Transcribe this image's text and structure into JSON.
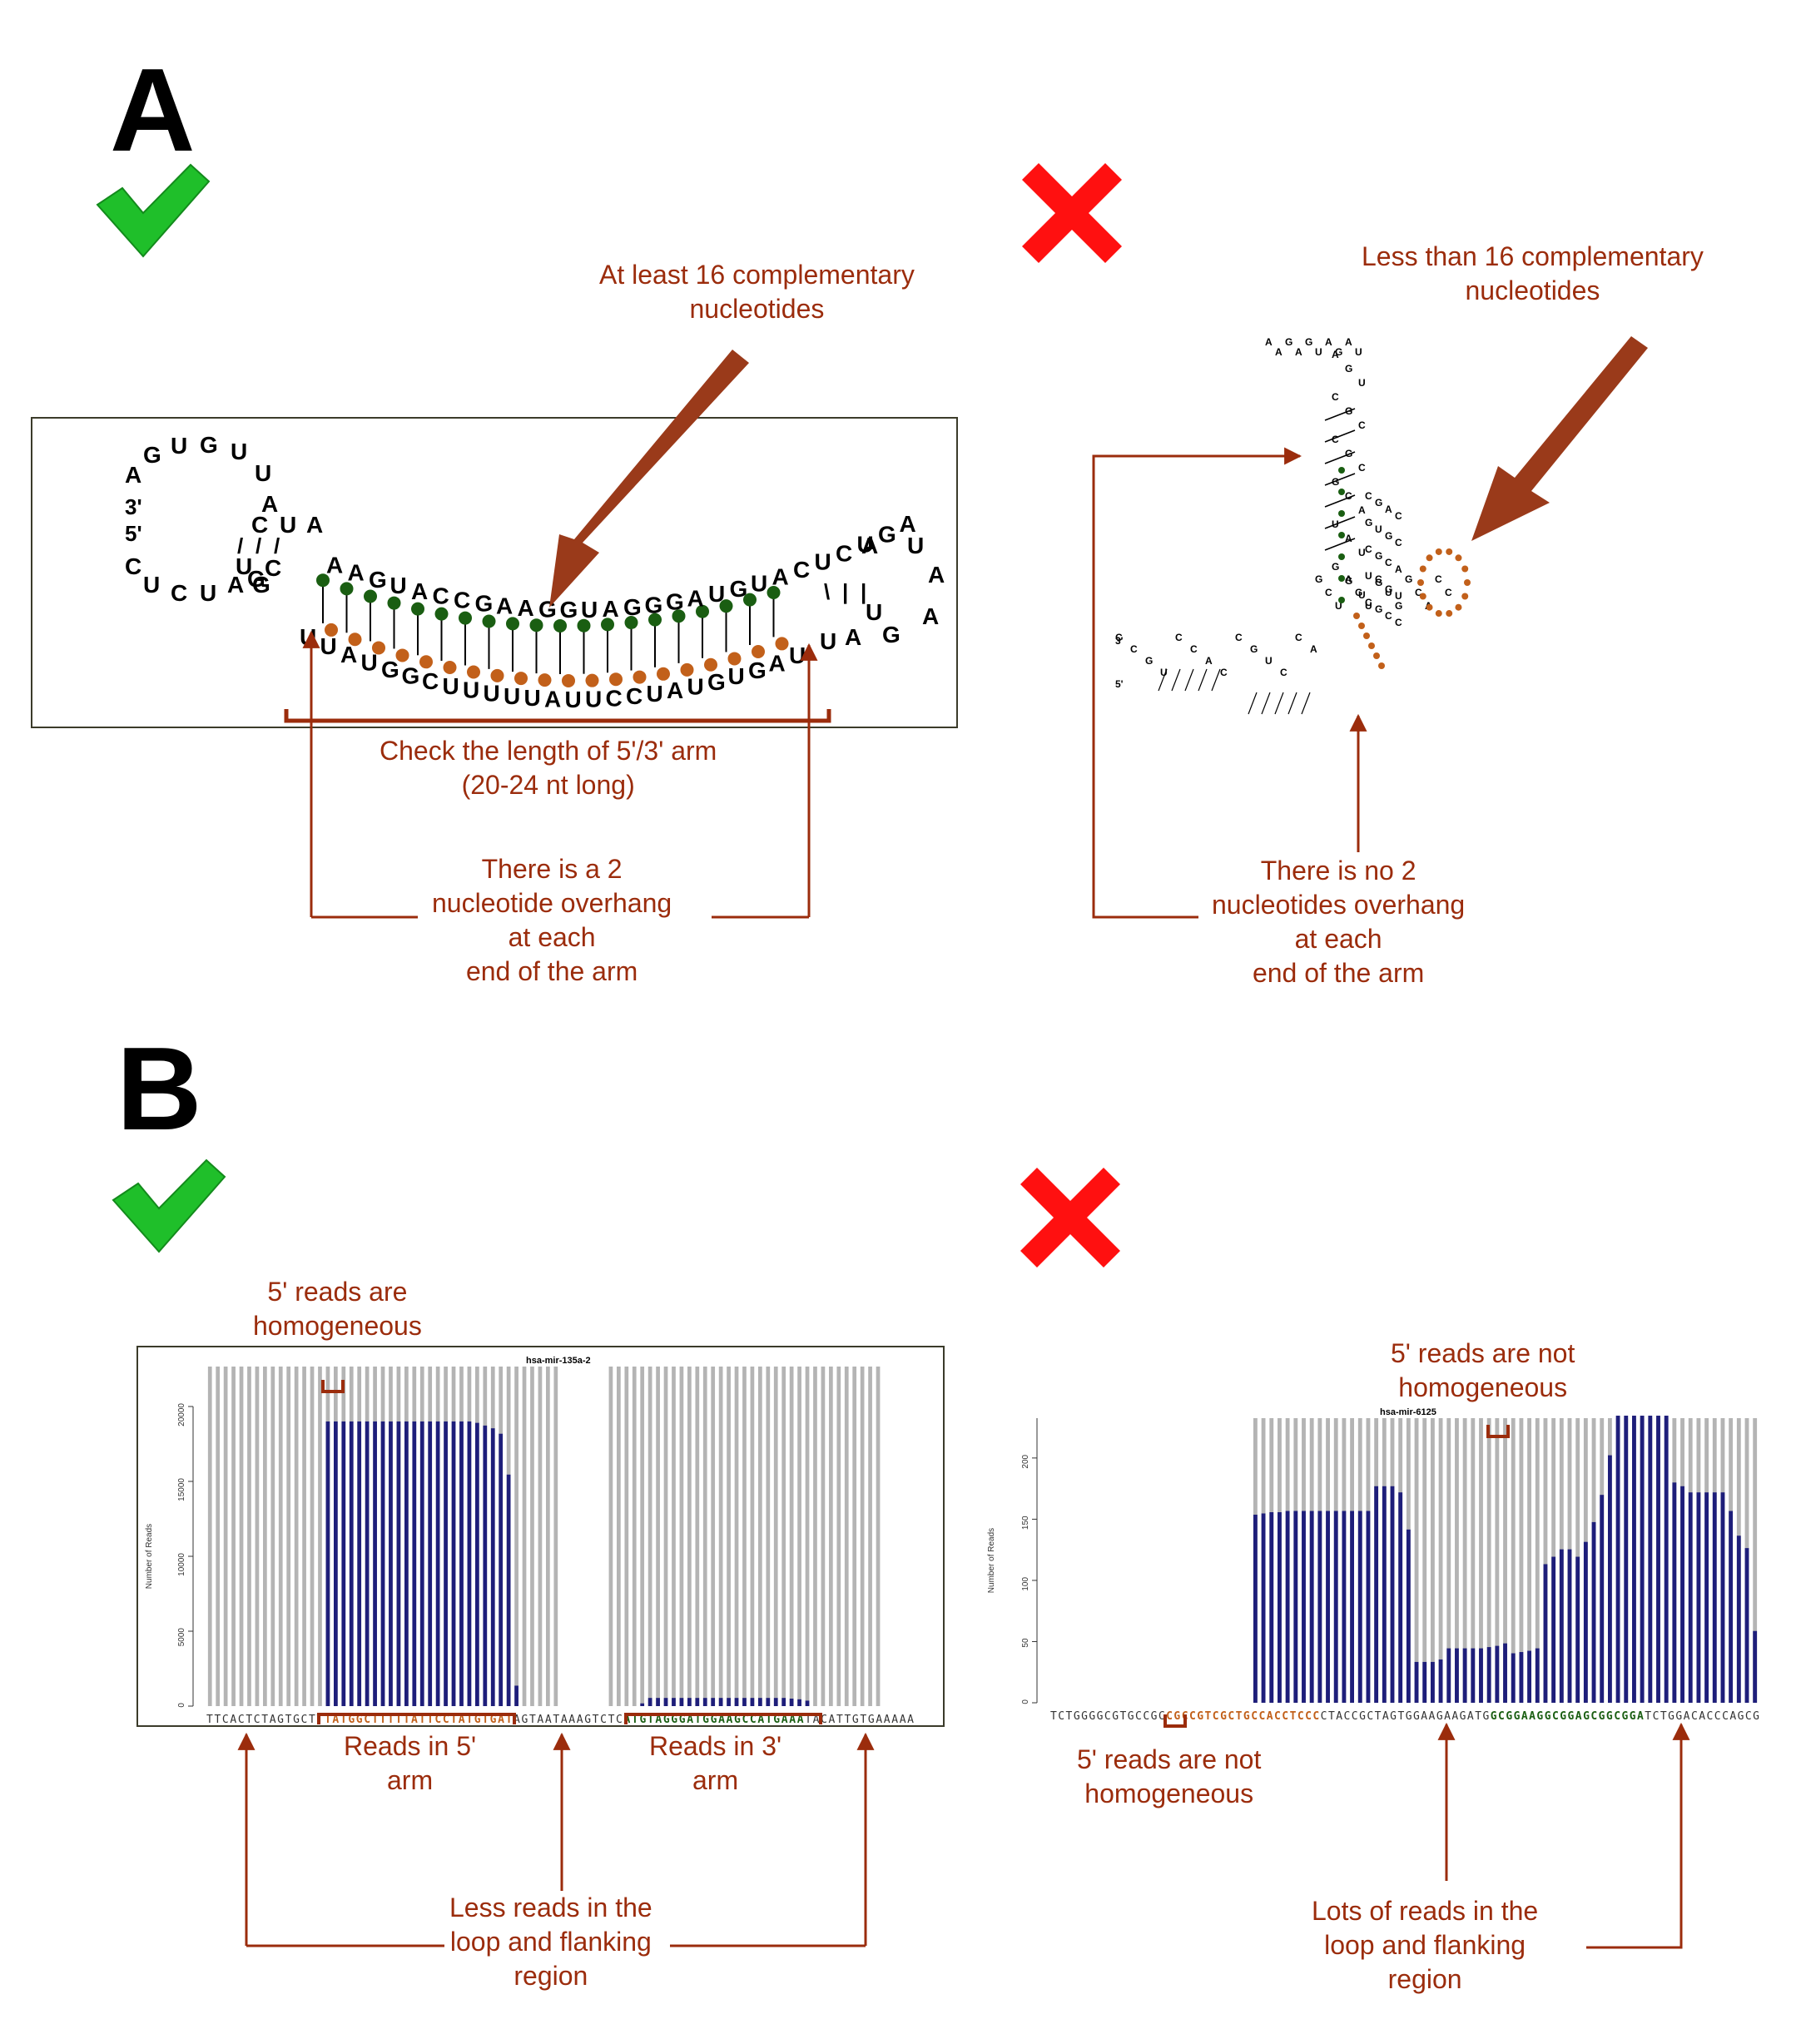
{
  "panels": {
    "a": "A",
    "b": "B"
  },
  "colors": {
    "annotation": "#9b2c0c",
    "pair_5p": "#1a5e12",
    "pair_3p": "#c2601a",
    "bars_reads": "#1e1e7a",
    "bars_bg": "#b4b4b4",
    "check": "#1fbf2a",
    "cross": "#ff1010"
  },
  "icons": [
    "check-mark-icon",
    "cross-mark-icon"
  ],
  "panel_a": {
    "good": {
      "label_comp": [
        "At least 16 complementary",
        "nucleotides"
      ],
      "label_length": [
        "Check the length of 5'/3' arm",
        "(20-24 nt long)"
      ],
      "label_overhang": [
        "There is a 2",
        "nucleotide overhang",
        "at each",
        "end of the arm"
      ],
      "loop_letters": [
        "A",
        "G",
        "U",
        "G",
        "U",
        "U",
        "A",
        "C",
        "U",
        "A"
      ],
      "end_labels": [
        "3'",
        "5'"
      ],
      "top_strand": "AAGUACCGAAGGUAGGGAUGUACUCUGA",
      "bottom_strand": "UUAUGGCUUUUUAUUCCUAUGUGAU",
      "left_tail": [
        "C",
        "U",
        "C",
        "U",
        "A",
        "U",
        "G",
        "C",
        "G"
      ],
      "right_tail": [
        "A",
        "U",
        "A",
        "A",
        "G",
        "U",
        "A",
        "U"
      ]
    },
    "bad": {
      "label_comp": [
        "Less than 16 complementary",
        "nucleotides"
      ],
      "label_overhang": [
        "There is no 2",
        "nucleotides overhang",
        "at each",
        "end of the arm"
      ],
      "letters": [
        "A",
        "A",
        "G",
        "A",
        "G",
        "U",
        "A",
        "G",
        "A",
        "U",
        "A",
        "G",
        "U",
        "C",
        "G",
        "C",
        "C",
        "G",
        "C",
        "G",
        "C",
        "A",
        "U",
        "A",
        "U",
        "G",
        "G",
        "U",
        "C",
        "C",
        "G",
        "U",
        "C",
        "C",
        "A",
        "C",
        "C",
        "G",
        "U",
        "C",
        "C",
        "A",
        "G",
        "C",
        "U",
        "A",
        "G",
        "U",
        "C",
        "U",
        "G",
        "G",
        "C",
        "A",
        "C",
        "C",
        "C",
        "G",
        "A",
        "C",
        "G",
        "U",
        "G",
        "C",
        "C",
        "G",
        "C",
        "A",
        "U",
        "G",
        "G",
        "U",
        "C",
        "G",
        "C",
        "C"
      ],
      "end_labels": [
        "3'",
        "5'"
      ]
    }
  },
  "panel_b": {
    "good": {
      "title": "hsa-mir-135a-2",
      "ylabel": "Number of Reads",
      "yticks": [
        "0",
        "5000",
        "10000",
        "15000",
        "20000"
      ],
      "label_homog": [
        "5' reads are",
        "homogeneous"
      ],
      "label_5arm": [
        "Reads in 5'",
        "arm"
      ],
      "label_3arm": [
        "Reads in 3'",
        "arm"
      ],
      "label_loop": [
        "Less reads in the",
        "loop and flanking",
        "region"
      ],
      "sequence": [
        {
          "t": "TTCACTCTAGTGCTT",
          "c": "#333333"
        },
        {
          "t": "TATGGCTTTTTATTCCTATGTGAT",
          "c": "#c2601a"
        },
        {
          "t": "AGTAATAAAGTCTC",
          "c": "#333333"
        },
        {
          "t": "ATGTAGGGATGGAAGCCATGAAA",
          "c": "#1a5e12"
        },
        {
          "t": "TACATTGTGAAAAA",
          "c": "#333333"
        }
      ]
    },
    "bad": {
      "title": "hsa-mir-6125",
      "ylabel": "Number of Reads",
      "yticks": [
        "0",
        "50",
        "100",
        "150",
        "200"
      ],
      "label_not_homog_top": [
        "5' reads are not",
        "homogeneous"
      ],
      "label_not_homog_bottom": [
        "5' reads are not",
        "homogeneous"
      ],
      "label_loop": [
        "Lots of reads in the",
        "loop and flanking",
        "region"
      ],
      "sequence": [
        {
          "t": "TCTGGGGCGTGCCGC",
          "c": "#333333"
        },
        {
          "t": "CGCCGTCGCTGCCACCTCCC",
          "c": "#c2601a"
        },
        {
          "t": "CTACCGCTAGTGGAAGAAGATG",
          "c": "#333333"
        },
        {
          "t": "GCGGAAGGCGGAGCGGCGGA",
          "c": "#1a5e12"
        },
        {
          "t": "TCTGGACACCCAGCG",
          "c": "#333333"
        }
      ]
    }
  },
  "chart_data": [
    {
      "type": "bar",
      "title": "hsa-mir-135a-2",
      "ylabel": "Number of Reads",
      "ylim": [
        0,
        22000
      ],
      "grid": false,
      "values": [
        0,
        0,
        0,
        0,
        0,
        0,
        0,
        0,
        0,
        0,
        0,
        0,
        0,
        0,
        0,
        20900,
        20900,
        20900,
        20900,
        20900,
        20900,
        20900,
        20900,
        20900,
        20900,
        20900,
        20900,
        20900,
        20900,
        20900,
        20900,
        20900,
        20900,
        20900,
        20800,
        20600,
        20400,
        20000,
        17000,
        1500,
        0,
        0,
        0,
        0,
        0,
        0,
        0,
        0,
        0,
        0,
        0,
        0,
        0,
        0,
        0,
        200,
        600,
        600,
        600,
        600,
        600,
        600,
        600,
        600,
        600,
        600,
        600,
        600,
        600,
        600,
        600,
        600,
        600,
        600,
        550,
        500,
        400,
        0,
        0,
        0,
        0,
        0,
        0,
        0,
        0,
        0,
        0,
        0,
        0,
        0
      ]
    },
    {
      "type": "bar",
      "title": "hsa-mir-6125",
      "ylabel": "Number of Reads",
      "ylim": [
        0,
        230
      ],
      "grid": false,
      "values": [
        0,
        0,
        0,
        0,
        0,
        0,
        0,
        0,
        0,
        0,
        0,
        0,
        0,
        0,
        0,
        0,
        0,
        0,
        0,
        0,
        0,
        0,
        0,
        0,
        0,
        152,
        153,
        154,
        154,
        155,
        155,
        155,
        155,
        155,
        155,
        155,
        155,
        155,
        155,
        155,
        175,
        175,
        175,
        170,
        140,
        33,
        33,
        33,
        35,
        44,
        44,
        44,
        44,
        44,
        45,
        46,
        48,
        40,
        41,
        42,
        44,
        112,
        118,
        124,
        124,
        118,
        130,
        146,
        168,
        200,
        232,
        232,
        232,
        232,
        232,
        232,
        232,
        178,
        175,
        170,
        170,
        170,
        170,
        170,
        155,
        135,
        125,
        58
      ]
    }
  ]
}
